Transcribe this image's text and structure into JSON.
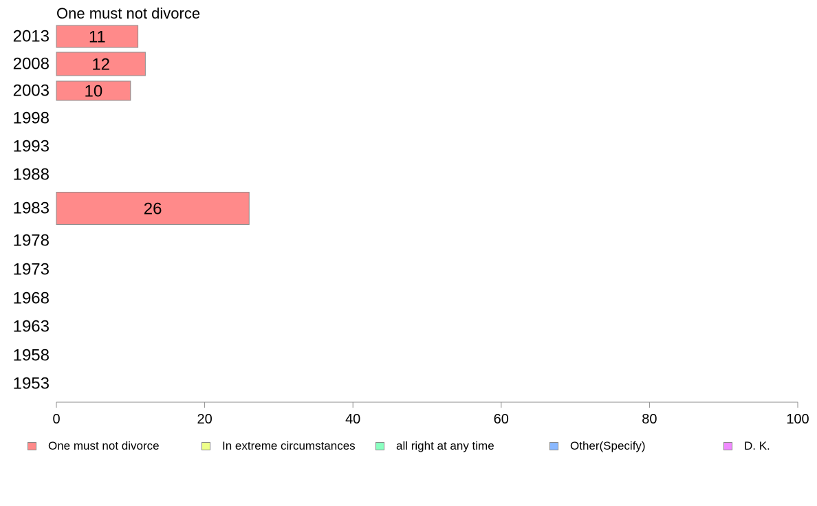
{
  "chart_data": {
    "type": "bar",
    "orientation": "horizontal",
    "title": "One must not divorce",
    "categories": [
      "2013",
      "2008",
      "2003",
      "1998",
      "1993",
      "1988",
      "1983",
      "1978",
      "1973",
      "1968",
      "1963",
      "1958",
      "1953"
    ],
    "series": [
      {
        "name": "One must not divorce",
        "color": "#ff8a8a",
        "values": [
          11,
          12,
          10,
          null,
          null,
          null,
          26,
          null,
          null,
          null,
          null,
          null,
          null
        ]
      }
    ],
    "xlim": [
      0,
      100
    ],
    "xticks": [
      0,
      20,
      40,
      60,
      80,
      100
    ],
    "grid": false,
    "legend_position": "bottom",
    "legend": [
      {
        "label": "One must not divorce",
        "color": "#ff8a8a"
      },
      {
        "label": "In extreme circumstances",
        "color": "#eeff8a"
      },
      {
        "label": "all right at any time",
        "color": "#8affc0"
      },
      {
        "label": "Other(Specify)",
        "color": "#8ab8ff"
      },
      {
        "label": "D. K.",
        "color": "#f08aff"
      }
    ]
  }
}
